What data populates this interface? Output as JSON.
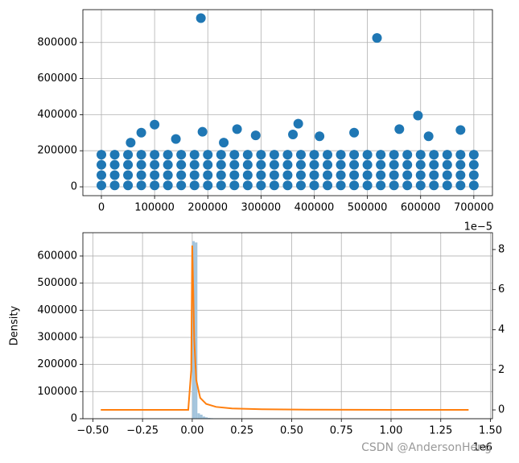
{
  "chart_data": [
    {
      "type": "scatter",
      "color": "#1f77b4",
      "grid": true,
      "xlim": [
        -34800,
        735000
      ],
      "ylim": [
        -49000,
        982000
      ],
      "xticks": [
        0,
        100000,
        200000,
        300000,
        400000,
        500000,
        600000,
        700000
      ],
      "yticks": [
        0,
        200000,
        400000,
        600000,
        800000
      ],
      "x": [
        0,
        25000,
        50000,
        75000,
        100000,
        125000,
        150000,
        175000,
        200000,
        225000,
        250000,
        275000,
        300000,
        325000,
        350000,
        375000,
        400000,
        425000,
        450000,
        475000,
        500000,
        525000,
        550000,
        575000,
        600000,
        625000,
        650000,
        675000,
        700000,
        0,
        25000,
        50000,
        75000,
        100000,
        125000,
        150000,
        175000,
        200000,
        225000,
        250000,
        275000,
        300000,
        325000,
        350000,
        375000,
        400000,
        425000,
        450000,
        475000,
        500000,
        525000,
        550000,
        575000,
        600000,
        625000,
        650000,
        675000,
        700000,
        0,
        25000,
        50000,
        75000,
        100000,
        125000,
        150000,
        175000,
        200000,
        225000,
        250000,
        275000,
        300000,
        325000,
        350000,
        375000,
        400000,
        425000,
        450000,
        475000,
        500000,
        525000,
        550000,
        575000,
        600000,
        625000,
        650000,
        675000,
        700000,
        0,
        25000,
        50000,
        75000,
        100000,
        125000,
        150000,
        175000,
        200000,
        225000,
        250000,
        275000,
        300000,
        325000,
        350000,
        375000,
        400000,
        425000,
        450000,
        475000,
        500000,
        525000,
        550000,
        575000,
        600000,
        625000,
        650000,
        675000,
        700000,
        187000,
        518000,
        595000,
        100000,
        370000,
        75000,
        190000,
        255000,
        560000,
        675000,
        475000,
        615000,
        140000,
        360000,
        410000,
        290000,
        55000,
        230000
      ],
      "values": [
        8000,
        8000,
        8000,
        8000,
        8000,
        8000,
        8000,
        8000,
        8000,
        8000,
        8000,
        8000,
        8000,
        8000,
        8000,
        8000,
        8000,
        8000,
        8000,
        8000,
        8000,
        8000,
        8000,
        8000,
        8000,
        8000,
        8000,
        8000,
        8000,
        65000,
        65000,
        65000,
        65000,
        65000,
        65000,
        65000,
        65000,
        65000,
        65000,
        65000,
        65000,
        65000,
        65000,
        65000,
        65000,
        65000,
        65000,
        65000,
        65000,
        65000,
        65000,
        65000,
        65000,
        65000,
        65000,
        65000,
        65000,
        65000,
        122000,
        122000,
        122000,
        122000,
        122000,
        122000,
        122000,
        122000,
        122000,
        122000,
        122000,
        122000,
        122000,
        122000,
        122000,
        122000,
        122000,
        122000,
        122000,
        122000,
        122000,
        122000,
        122000,
        122000,
        122000,
        122000,
        122000,
        122000,
        122000,
        178000,
        178000,
        178000,
        178000,
        178000,
        178000,
        178000,
        178000,
        178000,
        178000,
        178000,
        178000,
        178000,
        178000,
        178000,
        178000,
        178000,
        178000,
        178000,
        178000,
        178000,
        178000,
        178000,
        178000,
        178000,
        178000,
        178000,
        178000,
        178000,
        935000,
        825000,
        395000,
        345000,
        350000,
        300000,
        305000,
        320000,
        320000,
        315000,
        300000,
        280000,
        265000,
        290000,
        280000,
        285000,
        245000,
        245000
      ]
    },
    {
      "type": "histogram",
      "ylabel": "Density",
      "color": "#a3c4dc",
      "grid": true,
      "xlim": [
        -0.55,
        1.51
      ],
      "x_offset_label": "1e6",
      "xticks": [
        {
          "value": -0.5,
          "label": "−0.50"
        },
        {
          "value": -0.25,
          "label": "−0.25"
        },
        {
          "value": 0,
          "label": "0.00"
        },
        {
          "value": 0.25,
          "label": "0.25"
        },
        {
          "value": 0.5,
          "label": "0.50"
        },
        {
          "value": 0.75,
          "label": "0.75"
        },
        {
          "value": 1.0,
          "label": "1.00"
        },
        {
          "value": 1.25,
          "label": "1.25"
        },
        {
          "value": 1.5,
          "label": "1.50"
        }
      ],
      "ylim": [
        0,
        686000
      ],
      "yticks": [
        0,
        100000,
        200000,
        300000,
        400000,
        500000,
        600000
      ],
      "y2lim": [
        -0.44,
        8.84
      ],
      "y2ticks": [
        0,
        2,
        4,
        6,
        8
      ],
      "y2_offset_label": "1e−5",
      "bins": [
        0,
        0.013,
        0.026,
        0.039,
        0.052,
        0.065,
        0.078,
        0.091,
        0.104,
        0.117,
        0.13,
        0.143,
        0.156
      ],
      "values": [
        655000,
        650000,
        20000,
        15000,
        8000,
        5000,
        3000,
        2000,
        1500,
        1000,
        800,
        500
      ],
      "line": {
        "color": "#ff7f0e",
        "axis": "y2",
        "x": [
          -0.46,
          -0.02,
          -0.005,
          0,
          0.005,
          0.01,
          0.02,
          0.04,
          0.07,
          0.12,
          0.2,
          0.35,
          0.6,
          1.0,
          1.39
        ],
        "values": [
          0,
          0,
          2,
          8.2,
          6,
          3.5,
          1.5,
          0.6,
          0.3,
          0.15,
          0.07,
          0.03,
          0.01,
          0,
          0
        ]
      }
    }
  ],
  "watermark": "CSDN @AndersonHeng"
}
